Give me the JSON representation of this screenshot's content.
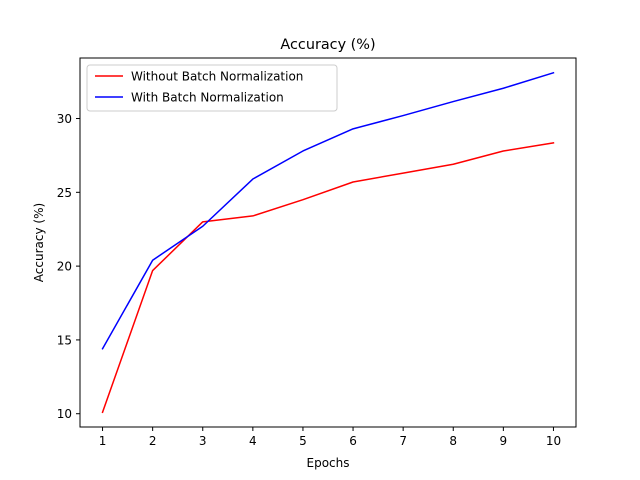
{
  "chart_data": {
    "type": "line",
    "title": "Accuracy (%)",
    "xlabel": "Epochs",
    "ylabel": "Accuracy (%)",
    "x": [
      1,
      2,
      3,
      4,
      5,
      6,
      7,
      8,
      9,
      10
    ],
    "x_ticks": [
      "1",
      "2",
      "3",
      "4",
      "5",
      "6",
      "7",
      "8",
      "9",
      "10"
    ],
    "y_ticks": [
      "10",
      "15",
      "20",
      "25",
      "30"
    ],
    "xlim": [
      0.55,
      10.45
    ],
    "ylim": [
      9.1,
      34.1
    ],
    "grid": false,
    "legend_position": "top-left",
    "series": [
      {
        "name": "Without Batch Normalization",
        "color": "#ff0000",
        "values": [
          10.1,
          19.7,
          23.0,
          23.4,
          24.5,
          25.7,
          26.3,
          26.9,
          27.8,
          28.35
        ]
      },
      {
        "name": "With Batch Normalization",
        "color": "#0000ff",
        "values": [
          14.4,
          20.4,
          22.7,
          25.9,
          27.8,
          29.3,
          30.2,
          31.15,
          32.05,
          33.1
        ]
      }
    ]
  }
}
